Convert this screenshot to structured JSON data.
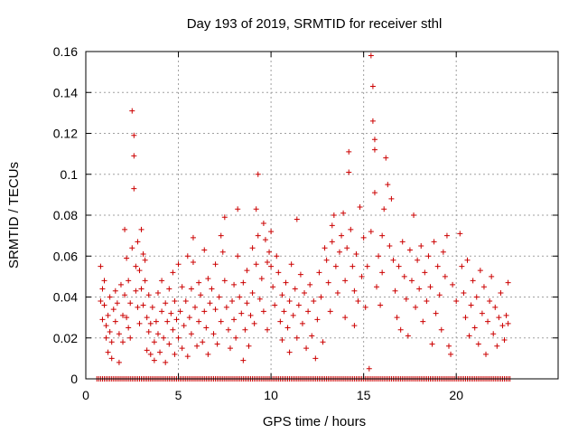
{
  "chart_data": {
    "type": "scatter",
    "title": "Day 193 of 2019, SRMTID for receiver sthl",
    "xlabel": "GPS time / hours",
    "ylabel": "SRMTID / TECUs",
    "xlim": [
      0,
      25.5
    ],
    "ylim": [
      0,
      0.16
    ],
    "x_ticks": [
      0,
      5,
      10,
      15,
      20
    ],
    "y_ticks": [
      0,
      0.02,
      0.04,
      0.06,
      0.08,
      0.1,
      0.12,
      0.14,
      0.16
    ],
    "grid": true,
    "marker": "+",
    "color": "#cc0000",
    "baseline_series": {
      "y": 0,
      "x_start": 0.6,
      "x_end": 22.9,
      "step": 0.1
    },
    "series": [
      {
        "name": "SRMTID",
        "points": [
          [
            0.8,
            0.038
          ],
          [
            0.8,
            0.055
          ],
          [
            0.9,
            0.029
          ],
          [
            0.9,
            0.044
          ],
          [
            1.0,
            0.048
          ],
          [
            1.0,
            0.036
          ],
          [
            1.1,
            0.026
          ],
          [
            1.1,
            0.02
          ],
          [
            1.2,
            0.031
          ],
          [
            1.2,
            0.013
          ],
          [
            1.3,
            0.023
          ],
          [
            1.3,
            0.04
          ],
          [
            1.4,
            0.018
          ],
          [
            1.4,
            0.01
          ],
          [
            1.5,
            0.034
          ],
          [
            1.6,
            0.043
          ],
          [
            1.6,
            0.028
          ],
          [
            1.7,
            0.037
          ],
          [
            1.8,
            0.022
          ],
          [
            1.8,
            0.008
          ],
          [
            1.9,
            0.046
          ],
          [
            2.0,
            0.031
          ],
          [
            2.0,
            0.018
          ],
          [
            2.1,
            0.073
          ],
          [
            2.1,
            0.041
          ],
          [
            2.2,
            0.03
          ],
          [
            2.2,
            0.059
          ],
          [
            2.3,
            0.048
          ],
          [
            2.3,
            0.025
          ],
          [
            2.4,
            0.037
          ],
          [
            2.4,
            0.02
          ],
          [
            2.5,
            0.131
          ],
          [
            2.5,
            0.064
          ],
          [
            2.6,
            0.119
          ],
          [
            2.6,
            0.109
          ],
          [
            2.6,
            0.093
          ],
          [
            2.7,
            0.055
          ],
          [
            2.7,
            0.043
          ],
          [
            2.8,
            0.035
          ],
          [
            2.8,
            0.067
          ],
          [
            2.9,
            0.053
          ],
          [
            2.9,
            0.027
          ],
          [
            3.0,
            0.044
          ],
          [
            3.0,
            0.073
          ],
          [
            3.1,
            0.061
          ],
          [
            3.1,
            0.036
          ],
          [
            3.2,
            0.058
          ],
          [
            3.2,
            0.048
          ],
          [
            3.3,
            0.03
          ],
          [
            3.3,
            0.014
          ],
          [
            3.4,
            0.023
          ],
          [
            3.4,
            0.041
          ],
          [
            3.5,
            0.027
          ],
          [
            3.5,
            0.012
          ],
          [
            3.6,
            0.035
          ],
          [
            3.7,
            0.018
          ],
          [
            3.7,
            0.009
          ],
          [
            3.8,
            0.028
          ],
          [
            3.9,
            0.042
          ],
          [
            3.9,
            0.022
          ],
          [
            4.0,
            0.013
          ],
          [
            4.1,
            0.033
          ],
          [
            4.1,
            0.048
          ],
          [
            4.2,
            0.02
          ],
          [
            4.3,
            0.037
          ],
          [
            4.3,
            0.008
          ],
          [
            4.4,
            0.028
          ],
          [
            4.5,
            0.044
          ],
          [
            4.5,
            0.017
          ],
          [
            4.6,
            0.032
          ],
          [
            4.7,
            0.052
          ],
          [
            4.7,
            0.024
          ],
          [
            4.8,
            0.038
          ],
          [
            4.8,
            0.012
          ],
          [
            4.9,
            0.029
          ],
          [
            5.0,
            0.056
          ],
          [
            5.0,
            0.02
          ],
          [
            5.1,
            0.033
          ],
          [
            5.2,
            0.045
          ],
          [
            5.2,
            0.015
          ],
          [
            5.3,
            0.026
          ],
          [
            5.4,
            0.038
          ],
          [
            5.5,
            0.06
          ],
          [
            5.5,
            0.011
          ],
          [
            5.6,
            0.03
          ],
          [
            5.7,
            0.022
          ],
          [
            5.7,
            0.044
          ],
          [
            5.8,
            0.069
          ],
          [
            5.8,
            0.057
          ],
          [
            5.9,
            0.035
          ],
          [
            6.0,
            0.016
          ],
          [
            6.1,
            0.047
          ],
          [
            6.1,
            0.028
          ],
          [
            6.2,
            0.041
          ],
          [
            6.3,
            0.018
          ],
          [
            6.4,
            0.063
          ],
          [
            6.4,
            0.033
          ],
          [
            6.5,
            0.025
          ],
          [
            6.6,
            0.049
          ],
          [
            6.6,
            0.012
          ],
          [
            6.7,
            0.037
          ],
          [
            6.8,
            0.044
          ],
          [
            6.9,
            0.022
          ],
          [
            7.0,
            0.034
          ],
          [
            7.0,
            0.056
          ],
          [
            7.1,
            0.017
          ],
          [
            7.2,
            0.04
          ],
          [
            7.3,
            0.028
          ],
          [
            7.3,
            0.07
          ],
          [
            7.4,
            0.062
          ],
          [
            7.5,
            0.079
          ],
          [
            7.5,
            0.048
          ],
          [
            7.6,
            0.035
          ],
          [
            7.7,
            0.024
          ],
          [
            7.8,
            0.015
          ],
          [
            7.9,
            0.038
          ],
          [
            8.0,
            0.046
          ],
          [
            8.0,
            0.029
          ],
          [
            8.1,
            0.02
          ],
          [
            8.2,
            0.083
          ],
          [
            8.2,
            0.06
          ],
          [
            8.3,
            0.04
          ],
          [
            8.4,
            0.032
          ],
          [
            8.5,
            0.047
          ],
          [
            8.5,
            0.009
          ],
          [
            8.6,
            0.024
          ],
          [
            8.7,
            0.037
          ],
          [
            8.7,
            0.053
          ],
          [
            8.8,
            0.016
          ],
          [
            8.9,
            0.031
          ],
          [
            9.0,
            0.042
          ],
          [
            9.0,
            0.064
          ],
          [
            9.1,
            0.027
          ],
          [
            9.2,
            0.056
          ],
          [
            9.2,
            0.083
          ],
          [
            9.3,
            0.1
          ],
          [
            9.3,
            0.07
          ],
          [
            9.4,
            0.039
          ],
          [
            9.5,
            0.049
          ],
          [
            9.6,
            0.033
          ],
          [
            9.6,
            0.076
          ],
          [
            9.7,
            0.068
          ],
          [
            9.8,
            0.057
          ],
          [
            9.8,
            0.024
          ],
          [
            9.9,
            0.062
          ],
          [
            10.0,
            0.055
          ],
          [
            10.0,
            0.072
          ],
          [
            10.1,
            0.045
          ],
          [
            10.2,
            0.036
          ],
          [
            10.3,
            0.06
          ],
          [
            10.4,
            0.052
          ],
          [
            10.5,
            0.028
          ],
          [
            10.6,
            0.041
          ],
          [
            10.6,
            0.019
          ],
          [
            10.7,
            0.033
          ],
          [
            10.8,
            0.047
          ],
          [
            10.9,
            0.025
          ],
          [
            11.0,
            0.038
          ],
          [
            11.0,
            0.013
          ],
          [
            11.1,
            0.056
          ],
          [
            11.2,
            0.031
          ],
          [
            11.3,
            0.044
          ],
          [
            11.4,
            0.078
          ],
          [
            11.4,
            0.02
          ],
          [
            11.5,
            0.036
          ],
          [
            11.6,
            0.051
          ],
          [
            11.7,
            0.027
          ],
          [
            11.8,
            0.042
          ],
          [
            11.9,
            0.015
          ],
          [
            12.0,
            0.033
          ],
          [
            12.1,
            0.046
          ],
          [
            12.2,
            0.021
          ],
          [
            12.3,
            0.038
          ],
          [
            12.4,
            0.01
          ],
          [
            12.5,
            0.029
          ],
          [
            12.6,
            0.052
          ],
          [
            12.7,
            0.04
          ],
          [
            12.8,
            0.018
          ],
          [
            12.9,
            0.064
          ],
          [
            13.0,
            0.058
          ],
          [
            13.1,
            0.047
          ],
          [
            13.2,
            0.033
          ],
          [
            13.3,
            0.075
          ],
          [
            13.3,
            0.067
          ],
          [
            13.4,
            0.08
          ],
          [
            13.5,
            0.055
          ],
          [
            13.6,
            0.042
          ],
          [
            13.7,
            0.062
          ],
          [
            13.8,
            0.07
          ],
          [
            13.9,
            0.081
          ],
          [
            14.0,
            0.048
          ],
          [
            14.0,
            0.03
          ],
          [
            14.1,
            0.064
          ],
          [
            14.2,
            0.111
          ],
          [
            14.2,
            0.101
          ],
          [
            14.3,
            0.073
          ],
          [
            14.4,
            0.055
          ],
          [
            14.5,
            0.043
          ],
          [
            14.5,
            0.026
          ],
          [
            14.6,
            0.061
          ],
          [
            14.7,
            0.038
          ],
          [
            14.8,
            0.084
          ],
          [
            14.9,
            0.05
          ],
          [
            15.0,
            0.069
          ],
          [
            15.1,
            0.035
          ],
          [
            15.2,
            0.055
          ],
          [
            15.3,
            0.005
          ],
          [
            15.4,
            0.072
          ],
          [
            15.4,
            0.158
          ],
          [
            15.5,
            0.143
          ],
          [
            15.5,
            0.126
          ],
          [
            15.6,
            0.117
          ],
          [
            15.6,
            0.112
          ],
          [
            15.6,
            0.091
          ],
          [
            15.7,
            0.045
          ],
          [
            15.8,
            0.06
          ],
          [
            15.9,
            0.036
          ],
          [
            16.0,
            0.07
          ],
          [
            16.0,
            0.052
          ],
          [
            16.1,
            0.083
          ],
          [
            16.2,
            0.108
          ],
          [
            16.3,
            0.095
          ],
          [
            16.4,
            0.065
          ],
          [
            16.5,
            0.088
          ],
          [
            16.6,
            0.058
          ],
          [
            16.7,
            0.043
          ],
          [
            16.8,
            0.03
          ],
          [
            16.9,
            0.055
          ],
          [
            17.0,
            0.024
          ],
          [
            17.1,
            0.067
          ],
          [
            17.2,
            0.05
          ],
          [
            17.3,
            0.039
          ],
          [
            17.4,
            0.021
          ],
          [
            17.5,
            0.063
          ],
          [
            17.6,
            0.048
          ],
          [
            17.7,
            0.08
          ],
          [
            17.8,
            0.035
          ],
          [
            17.9,
            0.058
          ],
          [
            18.0,
            0.044
          ],
          [
            18.1,
            0.065
          ],
          [
            18.2,
            0.028
          ],
          [
            18.3,
            0.052
          ],
          [
            18.4,
            0.038
          ],
          [
            18.5,
            0.06
          ],
          [
            18.6,
            0.045
          ],
          [
            18.7,
            0.017
          ],
          [
            18.8,
            0.067
          ],
          [
            18.9,
            0.032
          ],
          [
            19.0,
            0.055
          ],
          [
            19.1,
            0.041
          ],
          [
            19.2,
            0.024
          ],
          [
            19.3,
            0.062
          ],
          [
            19.4,
            0.05
          ],
          [
            19.5,
            0.07
          ],
          [
            19.6,
            0.016
          ],
          [
            19.7,
            0.012
          ],
          [
            19.8,
            0.046
          ],
          [
            20.0,
            0.038
          ],
          [
            20.2,
            0.071
          ],
          [
            20.3,
            0.055
          ],
          [
            20.4,
            0.042
          ],
          [
            20.5,
            0.03
          ],
          [
            20.6,
            0.058
          ],
          [
            20.7,
            0.021
          ],
          [
            20.8,
            0.036
          ],
          [
            20.9,
            0.048
          ],
          [
            21.0,
            0.025
          ],
          [
            21.1,
            0.04
          ],
          [
            21.2,
            0.017
          ],
          [
            21.3,
            0.053
          ],
          [
            21.4,
            0.032
          ],
          [
            21.5,
            0.045
          ],
          [
            21.6,
            0.012
          ],
          [
            21.7,
            0.028
          ],
          [
            21.8,
            0.038
          ],
          [
            21.9,
            0.05
          ],
          [
            22.0,
            0.022
          ],
          [
            22.1,
            0.035
          ],
          [
            22.2,
            0.016
          ],
          [
            22.3,
            0.03
          ],
          [
            22.4,
            0.042
          ],
          [
            22.5,
            0.026
          ],
          [
            22.6,
            0.019
          ],
          [
            22.7,
            0.031
          ],
          [
            22.8,
            0.047
          ],
          [
            22.8,
            0.027
          ]
        ]
      }
    ]
  }
}
